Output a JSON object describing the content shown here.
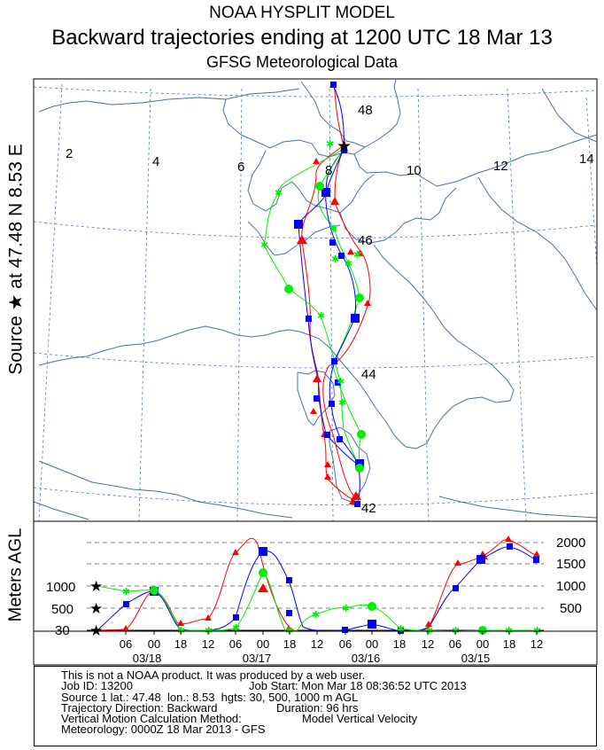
{
  "header": {
    "title": "NOAA HYSPLIT MODEL",
    "subtitle": "Backward trajectories ending at 1200 UTC 18 Mar 13",
    "met_data": "GFSG Meteorological Data"
  },
  "side_label": "Source ★ at   47.48 N   8.53 E",
  "map": {
    "meridian_labels": [
      "2",
      "4",
      "6",
      "8",
      "10",
      "12",
      "14"
    ],
    "parallel_labels": [
      "48",
      "46",
      "44",
      "42"
    ],
    "source_marker": "star-icon",
    "grid_color": "#5577bb",
    "coast_color": "#4a6fa8"
  },
  "series_colors": {
    "red": "#ff0000",
    "blue": "#0000ff",
    "green": "#00ee00"
  },
  "height_panel": {
    "axis_title": "Meters AGL",
    "left_levels": [
      "1000",
      "500",
      "30"
    ],
    "right_levels": [
      "2000",
      "1500",
      "1000",
      "500"
    ],
    "time_ticks": [
      "06",
      "00",
      "18",
      "12",
      "06",
      "00",
      "18",
      "12",
      "06",
      "00",
      "18",
      "12",
      "06",
      "00",
      "18",
      "12"
    ],
    "date_labels": [
      "03/18",
      "03/17",
      "03/16",
      "03/15"
    ]
  },
  "footer": {
    "line1": "This is not a NOAA product. It was produced by a web user.",
    "job_id": "Job ID: 13200",
    "job_start": "Job Start: Mon Mar 18 08:36:52 UTC 2013",
    "source_line": "Source 1 lat.: 47.48  lon.: 8.53  hgts: 30, 500, 1000 m AGL",
    "direction": "Trajectory Direction: Backward",
    "duration": "Duration: 96 hrs",
    "vertical_label": "Vertical Motion Calculation Method:",
    "vertical_value": "Model Vertical Velocity",
    "meteorology": "Meteorology: 0000Z 18 Mar 2013 - GFS"
  }
}
